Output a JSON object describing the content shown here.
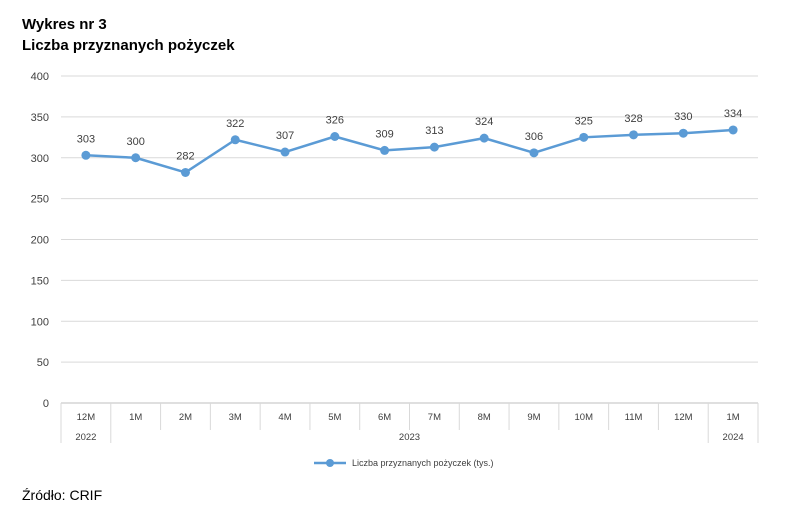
{
  "header": {
    "line1": "Wykres nr 3",
    "line2": "Liczba przyznanych pożyczek"
  },
  "source": "Źródło: CRIF",
  "chart_data": {
    "type": "line",
    "categories": [
      "12M",
      "1M",
      "2M",
      "3M",
      "4M",
      "5M",
      "6M",
      "7M",
      "8M",
      "9M",
      "10M",
      "11M",
      "12M",
      "1M"
    ],
    "year_groups": [
      {
        "label": "2022",
        "span": 1
      },
      {
        "label": "2023",
        "span": 12
      },
      {
        "label": "2024",
        "span": 1
      }
    ],
    "series": [
      {
        "name": "Liczba przyznanych pożyczek (tys.)",
        "values": [
          303,
          300,
          282,
          322,
          307,
          326,
          309,
          313,
          324,
          306,
          325,
          328,
          330,
          334
        ],
        "color": "#5b9bd5"
      }
    ],
    "ylim": [
      0,
      400
    ],
    "yticks": [
      0,
      50,
      100,
      150,
      200,
      250,
      300,
      350,
      400
    ],
    "grid": true,
    "legend": "bottom",
    "data_labels": true
  }
}
